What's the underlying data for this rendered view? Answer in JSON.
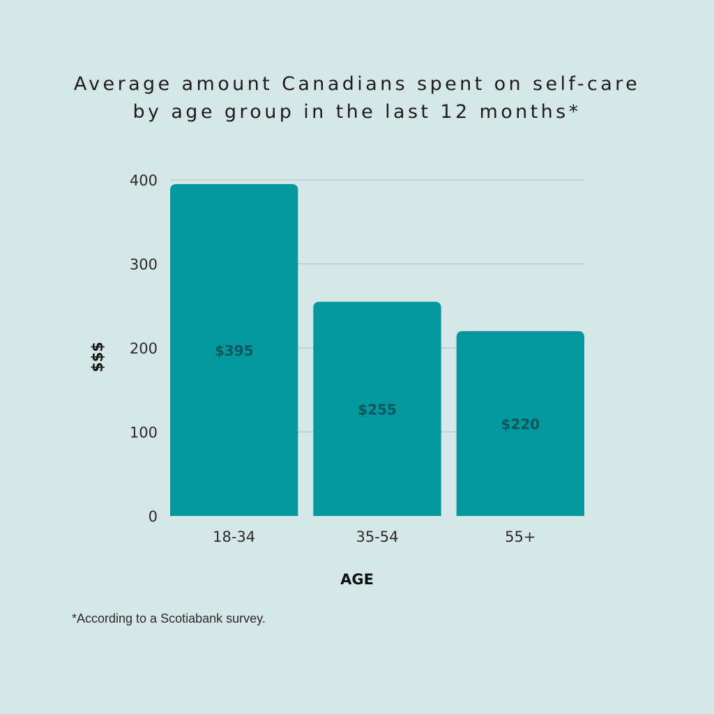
{
  "title_line1": "Average amount Canadians spent on self-care",
  "title_line2": "by age group in the last 12 months*",
  "footnote": "*According to a Scotiabank survey.",
  "colors": {
    "background": "#d6e7e7",
    "bar": "#03989e",
    "bar_label": "#07585c",
    "grid": "#a9c2c4",
    "text": "#2b2b2b"
  },
  "chart_data": {
    "type": "bar",
    "categories": [
      "18-34",
      "35-54",
      "55+"
    ],
    "values": [
      395,
      255,
      220
    ],
    "data_labels": [
      "$395",
      "$255",
      "$220"
    ],
    "xlabel": "AGE",
    "ylabel": "$$$",
    "ylim": [
      0,
      400
    ],
    "yticks": [
      0,
      100,
      200,
      300,
      400
    ],
    "grid": true,
    "legend": "none"
  }
}
